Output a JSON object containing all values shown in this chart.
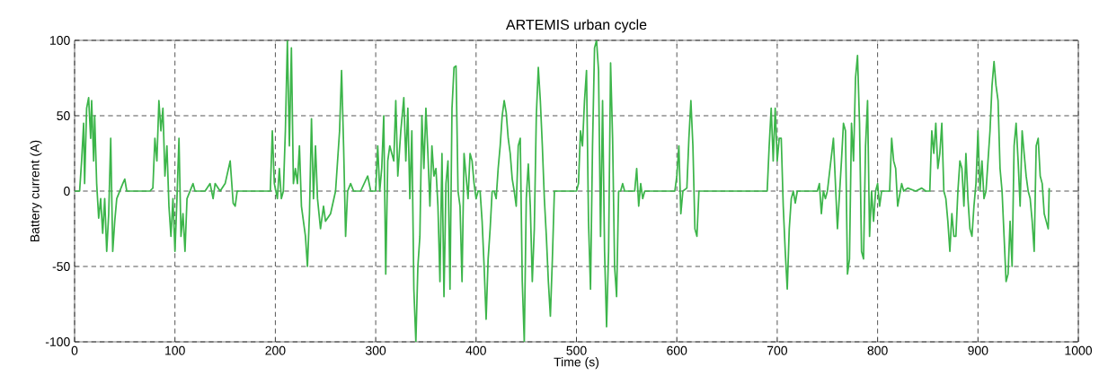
{
  "chart_data": {
    "type": "line",
    "title": "ARTEMIS urban cycle",
    "xlabel": "Time (s)",
    "ylabel": "Battery current (A)",
    "x": [
      0,
      5,
      7,
      9,
      10,
      12,
      14,
      16,
      17,
      19,
      20,
      22,
      24,
      26,
      28,
      30,
      32,
      34,
      36,
      38,
      40,
      42,
      45,
      48,
      50,
      52,
      55,
      75,
      78,
      80,
      82,
      84,
      86,
      88,
      90,
      92,
      94,
      96,
      98,
      100,
      102,
      104,
      106,
      108,
      110,
      112,
      115,
      118,
      120,
      130,
      135,
      138,
      140,
      145,
      150,
      155,
      158,
      160,
      162,
      180,
      195,
      197,
      199,
      202,
      204,
      206,
      208,
      210,
      212,
      214,
      216,
      218,
      220,
      222,
      224,
      226,
      228,
      230,
      232,
      234,
      236,
      238,
      240,
      242,
      245,
      248,
      250,
      255,
      260,
      264,
      266,
      268,
      270,
      272,
      275,
      278,
      285,
      292,
      295,
      300,
      302,
      304,
      306,
      308,
      310,
      312,
      314,
      318,
      320,
      322,
      325,
      328,
      330,
      332,
      334,
      336,
      338,
      340,
      342,
      344,
      346,
      348,
      350,
      352,
      354,
      356,
      358,
      360,
      362,
      364,
      366,
      368,
      370,
      372,
      374,
      376,
      378,
      380,
      382,
      384,
      386,
      388,
      390,
      392,
      394,
      396,
      398,
      400,
      402,
      404,
      406,
      408,
      410,
      412,
      414,
      416,
      418,
      420,
      422,
      424,
      426,
      428,
      430,
      432,
      434,
      436,
      438,
      440,
      442,
      444,
      446,
      448,
      450,
      452,
      454,
      456,
      458,
      460,
      462,
      464,
      466,
      468,
      470,
      472,
      474,
      476,
      478,
      480,
      500,
      502,
      504,
      506,
      508,
      510,
      512,
      514,
      516,
      518,
      520,
      522,
      524,
      526,
      528,
      530,
      532,
      534,
      536,
      538,
      540,
      542,
      544,
      546,
      548,
      558,
      560,
      562,
      564,
      566,
      568,
      570,
      598,
      600,
      602,
      604,
      606,
      610,
      612,
      614,
      616,
      618,
      620,
      622,
      625,
      690,
      692,
      694,
      696,
      698,
      700,
      702,
      704,
      706,
      708,
      710,
      712,
      714,
      716,
      718,
      720,
      725,
      740,
      742,
      744,
      746,
      748,
      750,
      756,
      760,
      764,
      766,
      768,
      770,
      772,
      774,
      776,
      778,
      780,
      782,
      784,
      786,
      788,
      790,
      792,
      794,
      796,
      798,
      800,
      802,
      804,
      808,
      812,
      814,
      816,
      818,
      820,
      824,
      826,
      830,
      838,
      844,
      848,
      852,
      854,
      856,
      858,
      860,
      862,
      864,
      866,
      868,
      870,
      872,
      874,
      876,
      878,
      880,
      882,
      884,
      886,
      888,
      890,
      892,
      894,
      896,
      898,
      900,
      902,
      904,
      906,
      908,
      910,
      912,
      914,
      916,
      918,
      920,
      922,
      924,
      926,
      928,
      930,
      932,
      934,
      936,
      938,
      940,
      942,
      944,
      946,
      948,
      950,
      952,
      954,
      956,
      958,
      960,
      962,
      964,
      966,
      968,
      970,
      971
    ],
    "series": [
      {
        "color": "#3cb54a",
        "values": [
          0,
          0,
          20,
          45,
          5,
          55,
          62,
          35,
          60,
          20,
          50,
          5,
          -18,
          -5,
          -28,
          -5,
          -40,
          -15,
          35,
          -40,
          -20,
          -5,
          0,
          5,
          8,
          0,
          0,
          0,
          2,
          35,
          20,
          60,
          40,
          55,
          10,
          30,
          -10,
          -30,
          -5,
          -40,
          -5,
          35,
          -30,
          -15,
          -40,
          -5,
          0,
          5,
          0,
          0,
          5,
          -5,
          5,
          0,
          5,
          20,
          -8,
          -10,
          0,
          0,
          0,
          40,
          5,
          -5,
          15,
          -5,
          0,
          40,
          100,
          30,
          95,
          5,
          15,
          5,
          30,
          -10,
          -20,
          -30,
          -50,
          -15,
          48,
          -5,
          30,
          -5,
          -25,
          -10,
          -20,
          -15,
          0,
          40,
          80,
          30,
          -30,
          0,
          5,
          0,
          0,
          10,
          0,
          0,
          30,
          0,
          15,
          50,
          -55,
          20,
          30,
          20,
          60,
          10,
          40,
          62,
          20,
          55,
          -5,
          40,
          -65,
          -100,
          -50,
          -30,
          50,
          15,
          55,
          25,
          -10,
          30,
          10,
          15,
          -10,
          -60,
          25,
          -70,
          5,
          20,
          -65,
          55,
          82,
          83,
          0,
          -10,
          -60,
          25,
          10,
          -5,
          25,
          20,
          5,
          -5,
          0,
          0,
          -20,
          -50,
          -85,
          -45,
          -25,
          0,
          0,
          -5,
          15,
          30,
          50,
          60,
          52,
          35,
          25,
          8,
          0,
          -10,
          30,
          35,
          -60,
          -100,
          -5,
          18,
          -10,
          -60,
          -25,
          50,
          82,
          60,
          30,
          -5,
          -30,
          -60,
          -83,
          -45,
          0,
          0,
          0,
          5,
          40,
          30,
          60,
          80,
          -20,
          -65,
          30,
          95,
          100,
          80,
          -30,
          60,
          -40,
          -90,
          -40,
          85,
          35,
          -50,
          -70,
          0,
          0,
          5,
          0,
          0,
          15,
          -10,
          5,
          -5,
          0,
          0,
          0,
          10,
          30,
          -15,
          0,
          2,
          35,
          60,
          30,
          -25,
          -30,
          0,
          0,
          0,
          30,
          55,
          20,
          55,
          20,
          35,
          35,
          -10,
          -40,
          -65,
          -25,
          -5,
          0,
          -8,
          0,
          0,
          0,
          5,
          -15,
          0,
          -5,
          0,
          35,
          -25,
          20,
          45,
          40,
          -55,
          -45,
          45,
          20,
          75,
          90,
          45,
          -40,
          -45,
          30,
          60,
          -30,
          0,
          -20,
          0,
          5,
          -10,
          0,
          0,
          0,
          35,
          20,
          15,
          -10,
          5,
          0,
          2,
          0,
          2,
          0,
          0,
          40,
          25,
          45,
          15,
          25,
          45,
          0,
          -5,
          -20,
          -40,
          -15,
          -30,
          -30,
          0,
          20,
          15,
          -10,
          25,
          -5,
          -25,
          -30,
          -10,
          5,
          40,
          0,
          20,
          -5,
          0,
          20,
          40,
          70,
          86,
          70,
          60,
          15,
          0,
          -30,
          -60,
          -55,
          -20,
          -50,
          30,
          45,
          20,
          -10,
          40,
          25,
          10,
          0,
          -5,
          -20,
          -40,
          30,
          35,
          10,
          5,
          -15,
          -20,
          -25,
          2
        ]
      }
    ],
    "xlim": [
      0,
      1000
    ],
    "ylim": [
      -100,
      100
    ],
    "xticks": [
      0,
      100,
      200,
      300,
      400,
      500,
      600,
      700,
      800,
      900,
      1000
    ],
    "yticks": [
      -100,
      -50,
      0,
      50,
      100
    ],
    "grid": true,
    "marker": "none",
    "line_style": "solid"
  }
}
